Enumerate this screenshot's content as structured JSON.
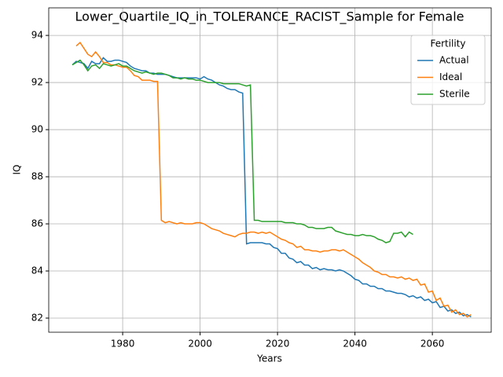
{
  "chart_data": {
    "type": "line",
    "title": "Lower_Quartile_IQ_in_TOLERANCE_RACIST_Sample for Female",
    "xlabel": "Years",
    "ylabel": "IQ",
    "legend_title": "Fertility",
    "legend_loc": "upper right",
    "grid": true,
    "xlim": [
      1960.9,
      2075.2
    ],
    "ylim": [
      81.4,
      95.17
    ],
    "xticks": [
      1980,
      2000,
      2020,
      2040,
      2060
    ],
    "yticks": [
      82,
      84,
      86,
      88,
      90,
      92,
      94
    ],
    "x": [
      1967,
      1968,
      1969,
      1970,
      1971,
      1972,
      1973,
      1974,
      1975,
      1976,
      1977,
      1978,
      1979,
      1980,
      1981,
      1982,
      1983,
      1984,
      1985,
      1986,
      1987,
      1988,
      1989,
      1990,
      1991,
      1992,
      1993,
      1994,
      1995,
      1996,
      1997,
      1998,
      1999,
      2000,
      2001,
      2002,
      2003,
      2004,
      2005,
      2006,
      2007,
      2008,
      2009,
      2010,
      2011,
      2012,
      2013,
      2014,
      2015,
      2016,
      2017,
      2018,
      2019,
      2020,
      2021,
      2022,
      2023,
      2024,
      2025,
      2026,
      2027,
      2028,
      2029,
      2030,
      2031,
      2032,
      2033,
      2034,
      2035,
      2036,
      2037,
      2038,
      2039,
      2040,
      2041,
      2042,
      2043,
      2044,
      2045,
      2046,
      2047,
      2048,
      2049,
      2050,
      2051,
      2052,
      2053,
      2054,
      2055,
      2056,
      2057,
      2058,
      2059,
      2060,
      2061,
      2062,
      2063,
      2064,
      2065,
      2066,
      2067,
      2068,
      2069,
      2070
    ],
    "series": [
      {
        "name": "Actual",
        "color": "#1f77b4",
        "values": [
          92.75,
          92.9,
          92.85,
          92.8,
          92.6,
          92.9,
          92.8,
          92.8,
          93.05,
          92.9,
          92.9,
          92.95,
          92.95,
          92.9,
          92.85,
          92.7,
          92.6,
          92.55,
          92.5,
          92.5,
          92.4,
          92.4,
          92.35,
          92.35,
          92.35,
          92.3,
          92.25,
          92.2,
          92.2,
          92.2,
          92.2,
          92.2,
          92.2,
          92.15,
          92.25,
          92.15,
          92.1,
          92.0,
          91.9,
          91.85,
          91.75,
          91.7,
          91.7,
          91.6,
          91.55,
          85.15,
          85.2,
          85.2,
          85.2,
          85.2,
          85.15,
          85.15,
          85.0,
          84.95,
          84.75,
          84.75,
          84.55,
          84.5,
          84.35,
          84.4,
          84.25,
          84.25,
          84.1,
          84.15,
          84.05,
          84.1,
          84.05,
          84.05,
          84.0,
          84.05,
          84.0,
          83.9,
          83.8,
          83.65,
          83.6,
          83.45,
          83.45,
          83.35,
          83.35,
          83.25,
          83.25,
          83.15,
          83.15,
          83.1,
          83.05,
          83.05,
          83.0,
          82.9,
          82.95,
          82.85,
          82.9,
          82.75,
          82.8,
          82.65,
          82.7,
          82.45,
          82.5,
          82.3,
          82.35,
          82.2,
          82.25,
          82.1,
          82.15,
          82.05
        ]
      },
      {
        "name": "Ideal",
        "color": "#ff7f0e",
        "values": [
          null,
          93.55,
          93.7,
          93.45,
          93.2,
          93.1,
          93.3,
          93.1,
          92.85,
          92.85,
          92.75,
          92.75,
          92.7,
          92.65,
          92.65,
          92.5,
          92.3,
          92.25,
          92.1,
          92.1,
          92.1,
          92.05,
          92.05,
          86.15,
          86.05,
          86.1,
          86.05,
          86.0,
          86.05,
          86.0,
          86.0,
          86.0,
          86.05,
          86.05,
          86.0,
          85.9,
          85.8,
          85.75,
          85.7,
          85.6,
          85.55,
          85.5,
          85.45,
          85.55,
          85.6,
          85.6,
          85.65,
          85.65,
          85.6,
          85.65,
          85.6,
          85.65,
          85.55,
          85.45,
          85.35,
          85.3,
          85.2,
          85.15,
          85.0,
          85.05,
          84.9,
          84.9,
          84.85,
          84.85,
          84.8,
          84.85,
          84.85,
          84.9,
          84.9,
          84.85,
          84.9,
          84.8,
          84.7,
          84.6,
          84.5,
          84.35,
          84.25,
          84.15,
          84.0,
          83.95,
          83.85,
          83.85,
          83.75,
          83.75,
          83.7,
          83.75,
          83.65,
          83.7,
          83.6,
          83.65,
          83.4,
          83.45,
          83.1,
          83.15,
          82.75,
          82.85,
          82.5,
          82.55,
          82.25,
          82.35,
          82.15,
          82.2,
          82.05,
          82.15
        ]
      },
      {
        "name": "Sterile",
        "color": "#2ca02c",
        "values": [
          92.75,
          92.85,
          92.95,
          92.75,
          92.5,
          92.7,
          92.75,
          92.6,
          92.8,
          92.75,
          92.7,
          92.75,
          92.8,
          92.7,
          92.7,
          92.6,
          92.5,
          92.45,
          92.4,
          92.45,
          92.4,
          92.35,
          92.4,
          92.4,
          92.35,
          92.3,
          92.2,
          92.2,
          92.15,
          92.2,
          92.15,
          92.15,
          92.1,
          92.1,
          92.05,
          92.0,
          92.0,
          92.0,
          92.0,
          91.95,
          91.95,
          91.95,
          91.95,
          91.95,
          91.9,
          91.85,
          91.9,
          86.15,
          86.15,
          86.1,
          86.1,
          86.1,
          86.1,
          86.1,
          86.1,
          86.05,
          86.05,
          86.05,
          86.0,
          86.0,
          85.95,
          85.85,
          85.85,
          85.8,
          85.8,
          85.8,
          85.85,
          85.85,
          85.7,
          85.65,
          85.6,
          85.55,
          85.55,
          85.5,
          85.5,
          85.55,
          85.5,
          85.5,
          85.45,
          85.35,
          85.3,
          85.2,
          85.25,
          85.6,
          85.6,
          85.65,
          85.45,
          85.65,
          85.55,
          null,
          null,
          null,
          null,
          null,
          null,
          null,
          null,
          null,
          null,
          null,
          null,
          null,
          null,
          null
        ]
      }
    ]
  }
}
